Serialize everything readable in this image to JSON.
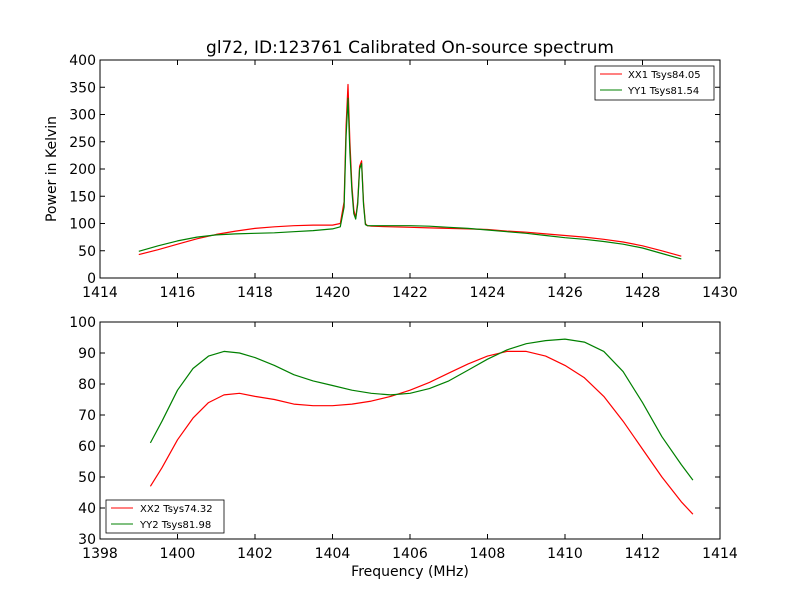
{
  "chart_data": [
    {
      "type": "line",
      "title": "gl72, ID:123761 Calibrated On-source spectrum",
      "xlabel": "",
      "ylabel": "Power in Kelvin",
      "xlim": [
        1414,
        1430
      ],
      "ylim": [
        0,
        400
      ],
      "xticks": [
        "1414",
        "1416",
        "1418",
        "1420",
        "1422",
        "1424",
        "1426",
        "1428",
        "1430"
      ],
      "yticks": [
        "0",
        "50",
        "100",
        "150",
        "200",
        "250",
        "300",
        "350",
        "400"
      ],
      "legend_position": "upper-right",
      "grid": false,
      "series": [
        {
          "name": "XX1 Tsys84.05",
          "color": "#ff0000",
          "x": [
            1415.0,
            1415.5,
            1416.0,
            1416.5,
            1417.0,
            1417.5,
            1418.0,
            1418.5,
            1419.0,
            1419.5,
            1420.0,
            1420.2,
            1420.3,
            1420.35,
            1420.4,
            1420.45,
            1420.5,
            1420.55,
            1420.6,
            1420.65,
            1420.7,
            1420.75,
            1420.8,
            1420.85,
            1420.9,
            1421.0,
            1421.5,
            1422.0,
            1422.5,
            1423.0,
            1423.5,
            1424.0,
            1424.5,
            1425.0,
            1425.5,
            1426.0,
            1426.5,
            1427.0,
            1427.5,
            1428.0,
            1428.5,
            1429.0
          ],
          "y": [
            43,
            52,
            62,
            72,
            80,
            86,
            91,
            94,
            96,
            97,
            97,
            100,
            140,
            280,
            355,
            250,
            170,
            125,
            110,
            140,
            205,
            215,
            140,
            100,
            96,
            95,
            94,
            93,
            92,
            91,
            90,
            89,
            86,
            84,
            81,
            78,
            75,
            71,
            66,
            59,
            50,
            40
          ]
        },
        {
          "name": "YY1 Tsys81.54",
          "color": "#008000",
          "x": [
            1415.0,
            1415.5,
            1416.0,
            1416.5,
            1417.0,
            1417.5,
            1418.0,
            1418.5,
            1419.0,
            1419.5,
            1420.0,
            1420.2,
            1420.3,
            1420.35,
            1420.4,
            1420.45,
            1420.5,
            1420.55,
            1420.6,
            1420.65,
            1420.7,
            1420.75,
            1420.8,
            1420.85,
            1420.9,
            1421.0,
            1421.5,
            1422.0,
            1422.5,
            1423.0,
            1423.5,
            1424.0,
            1424.5,
            1425.0,
            1425.5,
            1426.0,
            1426.5,
            1427.0,
            1427.5,
            1428.0,
            1428.5,
            1429.0
          ],
          "y": [
            49,
            59,
            68,
            75,
            79,
            81,
            82,
            83,
            85,
            87,
            90,
            94,
            130,
            260,
            330,
            230,
            160,
            118,
            108,
            135,
            200,
            210,
            135,
            98,
            96,
            96,
            96,
            96,
            95,
            93,
            91,
            88,
            85,
            82,
            78,
            74,
            71,
            67,
            62,
            55,
            45,
            35
          ]
        }
      ]
    },
    {
      "type": "line",
      "title": "",
      "xlabel": "Frequency (MHz)",
      "ylabel": "",
      "xlim": [
        1398,
        1414
      ],
      "ylim": [
        30,
        100
      ],
      "xticks": [
        "1398",
        "1400",
        "1402",
        "1404",
        "1406",
        "1408",
        "1410",
        "1412",
        "1414"
      ],
      "yticks": [
        "30",
        "40",
        "50",
        "60",
        "70",
        "80",
        "90",
        "100"
      ],
      "legend_position": "lower-left",
      "grid": false,
      "series": [
        {
          "name": "XX2 Tsys74.32",
          "color": "#ff0000",
          "x": [
            1399.3,
            1399.6,
            1400.0,
            1400.4,
            1400.8,
            1401.2,
            1401.6,
            1402.0,
            1402.5,
            1403.0,
            1403.5,
            1404.0,
            1404.5,
            1405.0,
            1405.5,
            1406.0,
            1406.5,
            1407.0,
            1407.5,
            1408.0,
            1408.5,
            1409.0,
            1409.5,
            1410.0,
            1410.5,
            1411.0,
            1411.5,
            1412.0,
            1412.5,
            1413.0,
            1413.3
          ],
          "y": [
            47,
            53,
            62,
            69,
            74,
            76.5,
            77,
            76,
            75,
            73.5,
            73,
            73,
            73.5,
            74.5,
            76,
            78,
            80.5,
            83.5,
            86.5,
            89,
            90.5,
            90.5,
            89,
            86,
            82,
            76,
            68,
            59,
            50,
            42,
            38
          ]
        },
        {
          "name": "YY2 Tsys81.98",
          "color": "#008000",
          "x": [
            1399.3,
            1399.6,
            1400.0,
            1400.4,
            1400.8,
            1401.2,
            1401.6,
            1402.0,
            1402.5,
            1403.0,
            1403.5,
            1404.0,
            1404.5,
            1405.0,
            1405.5,
            1406.0,
            1406.5,
            1407.0,
            1407.5,
            1408.0,
            1408.5,
            1409.0,
            1409.5,
            1410.0,
            1410.5,
            1411.0,
            1411.5,
            1412.0,
            1412.5,
            1413.0,
            1413.3
          ],
          "y": [
            61,
            68,
            78,
            85,
            89,
            90.5,
            90,
            88.5,
            86,
            83,
            81,
            79.5,
            78,
            77,
            76.5,
            77,
            78.5,
            81,
            84.5,
            88,
            91,
            93,
            94,
            94.5,
            93.5,
            90.5,
            84,
            74,
            63,
            54,
            49
          ]
        }
      ]
    }
  ]
}
